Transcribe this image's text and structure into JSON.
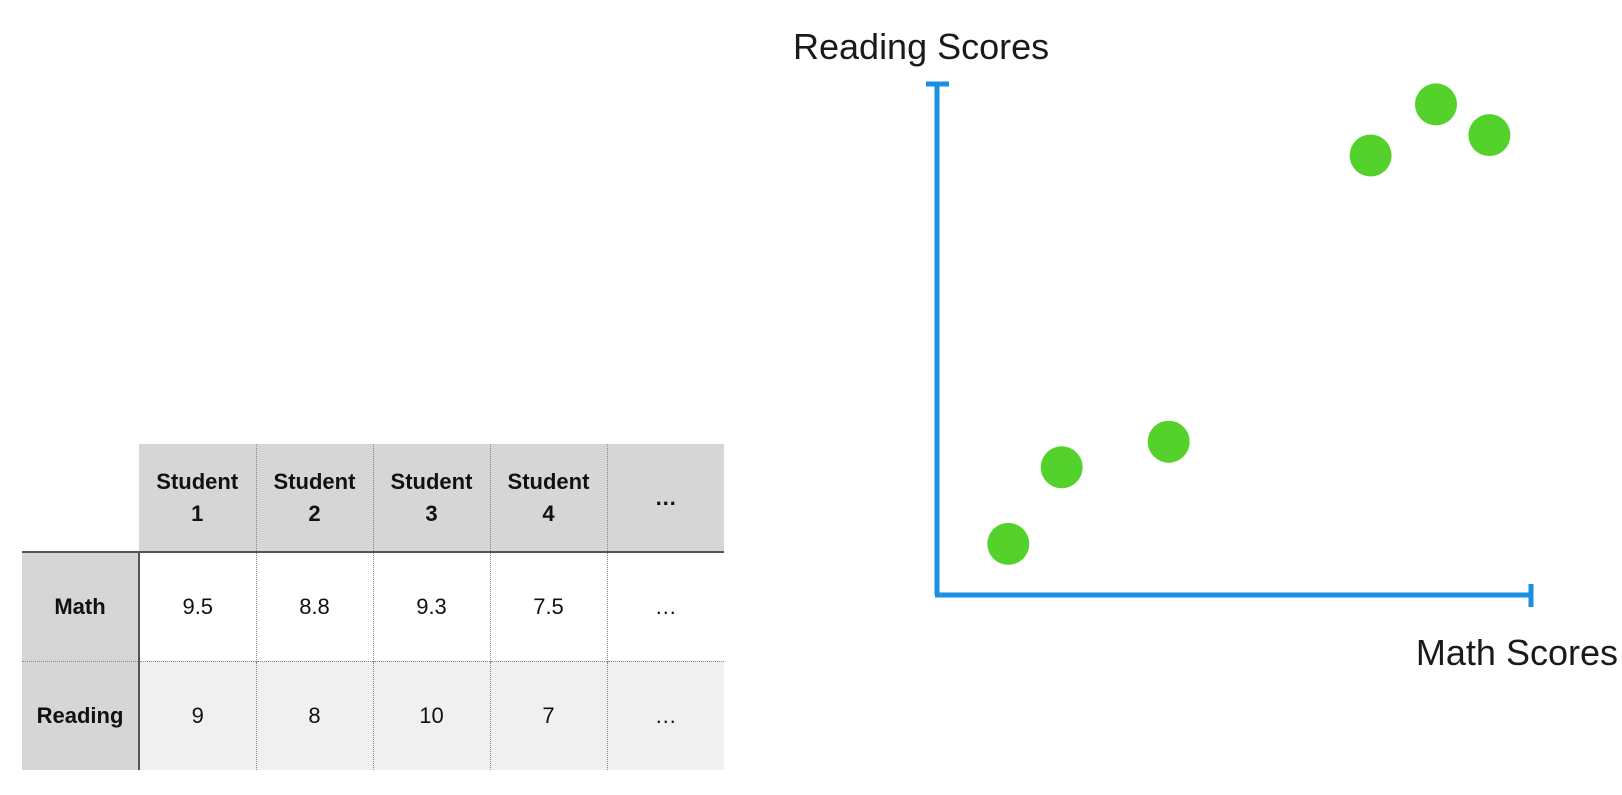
{
  "table": {
    "corner": "",
    "columns": [
      {
        "line1": "Student",
        "line2": "1"
      },
      {
        "line1": "Student",
        "line2": "2"
      },
      {
        "line1": "Student",
        "line2": "3"
      },
      {
        "line1": "Student",
        "line2": "4"
      },
      {
        "line1": "…",
        "line2": ""
      }
    ],
    "rows": [
      {
        "label": "Math",
        "values": [
          "9.5",
          "8.8",
          "9.3",
          "7.5",
          "…"
        ]
      },
      {
        "label": "Reading",
        "values": [
          "9",
          "8",
          "10",
          "7",
          "…"
        ]
      }
    ]
  },
  "chart_data": {
    "type": "scatter",
    "title": "",
    "xlabel": "Math Scores",
    "ylabel": "Reading Scores",
    "xlim": [
      0,
      10
    ],
    "ylim": [
      0,
      10
    ],
    "grid": false,
    "legend": "none",
    "axis_color": "#1a8fe3",
    "point_color": "#55d12c",
    "points": [
      {
        "x": 1.2,
        "y": 1.0
      },
      {
        "x": 2.1,
        "y": 2.5
      },
      {
        "x": 3.9,
        "y": 3.0
      },
      {
        "x": 7.3,
        "y": 8.6
      },
      {
        "x": 8.4,
        "y": 9.6
      },
      {
        "x": 9.3,
        "y": 9.0
      }
    ]
  }
}
